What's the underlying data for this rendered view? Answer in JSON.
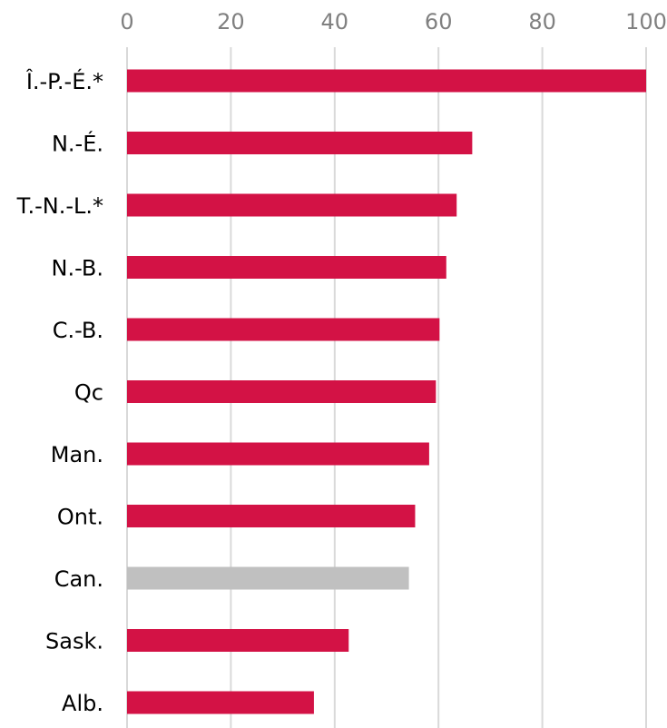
{
  "chart_data": {
    "type": "bar",
    "orientation": "horizontal",
    "title": "",
    "xlabel": "",
    "ylabel": "",
    "xlim": [
      0,
      100
    ],
    "x_ticks": [
      "0",
      "20",
      "40",
      "60",
      "80",
      "100"
    ],
    "x_tick_values": [
      0,
      20,
      40,
      60,
      80,
      100
    ],
    "grid": true,
    "legend": "none",
    "categories": [
      "Î.-P.-É.*",
      "N.-É.",
      "T.-N.-L.*",
      "N.-B.",
      "C.-B.",
      "Qc",
      "Man.",
      "Ont.",
      "Can.",
      "Sask.",
      "Alb."
    ],
    "values": [
      100,
      66.5,
      63.5,
      61.5,
      60.2,
      59.5,
      58.2,
      55.5,
      54.3,
      42.7,
      36
    ],
    "highlight_category": "Can.",
    "colors": {
      "bar": "#d31245",
      "highlight": "#c0c0c0",
      "grid": "#d9d9d9",
      "tick_text": "#808080",
      "label_text": "#000000"
    }
  }
}
